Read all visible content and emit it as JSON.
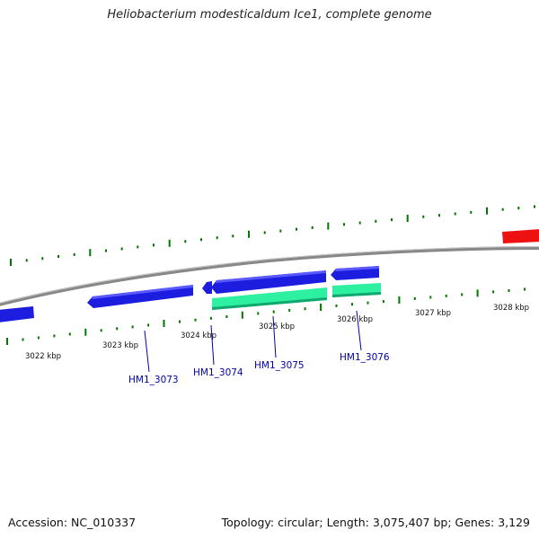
{
  "title": "Heliobacterium modesticaldum Ice1, complete genome",
  "accession": "Accession: NC_010337",
  "summary": "Topology: circular; Length: 3,075,407 bp; Genes: 3,129",
  "colors": {
    "backbone": "#808080",
    "forward_gene": "#ff1a1a",
    "reverse_gene": "#1a1adf",
    "rna_gene": "#22ee99",
    "tick": "#007700",
    "label": "#0000aa"
  },
  "scale_labels": [
    "3022 kbp",
    "3023 kbp",
    "3024 kbp",
    "3025 kbp",
    "3026 kbp",
    "3027 kbp",
    "3028 kbp"
  ],
  "gene_labels": [
    "HM1_3073",
    "HM1_3074",
    "HM1_3075",
    "HM1_3076"
  ]
}
